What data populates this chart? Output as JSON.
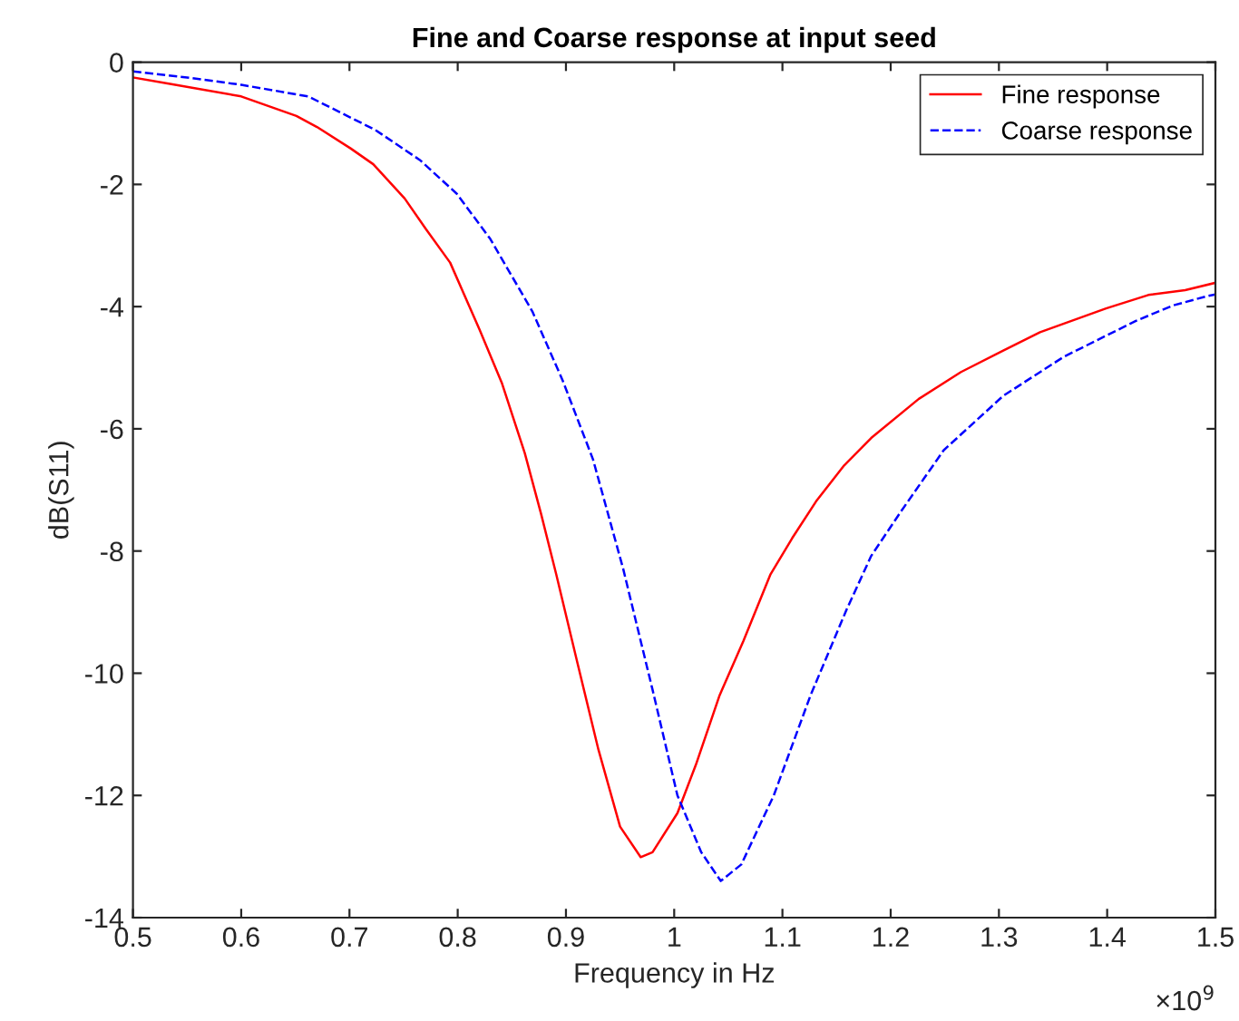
{
  "chart_data": {
    "type": "line",
    "title": "Fine and Coarse response at input seed",
    "xlabel": "Frequency in Hz",
    "ylabel": "dB(S11)",
    "annotations": [
      "×10$^{9}$"
    ],
    "xlim": [
      0.5,
      1.5
    ],
    "ylim": [
      -14,
      0
    ],
    "xticks": [
      0.5,
      0.6,
      0.7,
      0.8,
      0.9,
      1,
      1.1,
      1.2,
      1.3,
      1.4,
      1.5
    ],
    "yticks": [
      -14,
      -12,
      -10,
      -8,
      -6,
      -4,
      -2,
      0
    ],
    "grid": false,
    "legend": "top right",
    "series": [
      {
        "name": "Fine response",
        "color": "#ff0000",
        "line_style": "solid",
        "x": [
          0.5,
          0.533,
          0.6,
          0.651,
          0.67,
          0.701,
          0.722,
          0.751,
          0.771,
          0.793,
          0.82,
          0.841,
          0.862,
          0.877,
          0.891,
          0.911,
          0.93,
          0.95,
          0.969,
          0.98,
          1.003,
          1.02,
          1.042,
          1.064,
          1.089,
          1.109,
          1.131,
          1.157,
          1.182,
          1.226,
          1.265,
          1.304,
          1.338,
          1.399,
          1.438,
          1.472,
          1.5
        ],
        "values": [
          -0.25,
          -0.35,
          -0.56,
          -0.88,
          -1.06,
          -1.41,
          -1.67,
          -2.23,
          -2.74,
          -3.28,
          -4.37,
          -5.26,
          -6.4,
          -7.39,
          -8.38,
          -9.86,
          -11.25,
          -12.51,
          -13.01,
          -12.93,
          -12.29,
          -11.5,
          -10.36,
          -9.47,
          -8.38,
          -7.79,
          -7.19,
          -6.6,
          -6.15,
          -5.51,
          -5.07,
          -4.72,
          -4.42,
          -4.03,
          -3.81,
          -3.73,
          -3.61
        ]
      },
      {
        "name": "Coarse response",
        "color": "#0000ff",
        "line_style": "dashed",
        "x": [
          0.5,
          0.55,
          0.6,
          0.662,
          0.724,
          0.765,
          0.799,
          0.83,
          0.869,
          0.897,
          0.925,
          0.953,
          0.98,
          1.003,
          1.025,
          1.043,
          1.062,
          1.092,
          1.126,
          1.159,
          1.182,
          1.21,
          1.249,
          1.304,
          1.36,
          1.427,
          1.461,
          1.492,
          1.5
        ],
        "values": [
          -0.15,
          -0.25,
          -0.37,
          -0.56,
          -1.11,
          -1.6,
          -2.15,
          -2.89,
          -4.08,
          -5.21,
          -6.5,
          -8.3,
          -10.27,
          -12.0,
          -12.93,
          -13.4,
          -13.13,
          -12.0,
          -10.36,
          -8.97,
          -8.08,
          -7.34,
          -6.35,
          -5.46,
          -4.82,
          -4.23,
          -3.98,
          -3.83,
          -3.8
        ]
      }
    ]
  }
}
